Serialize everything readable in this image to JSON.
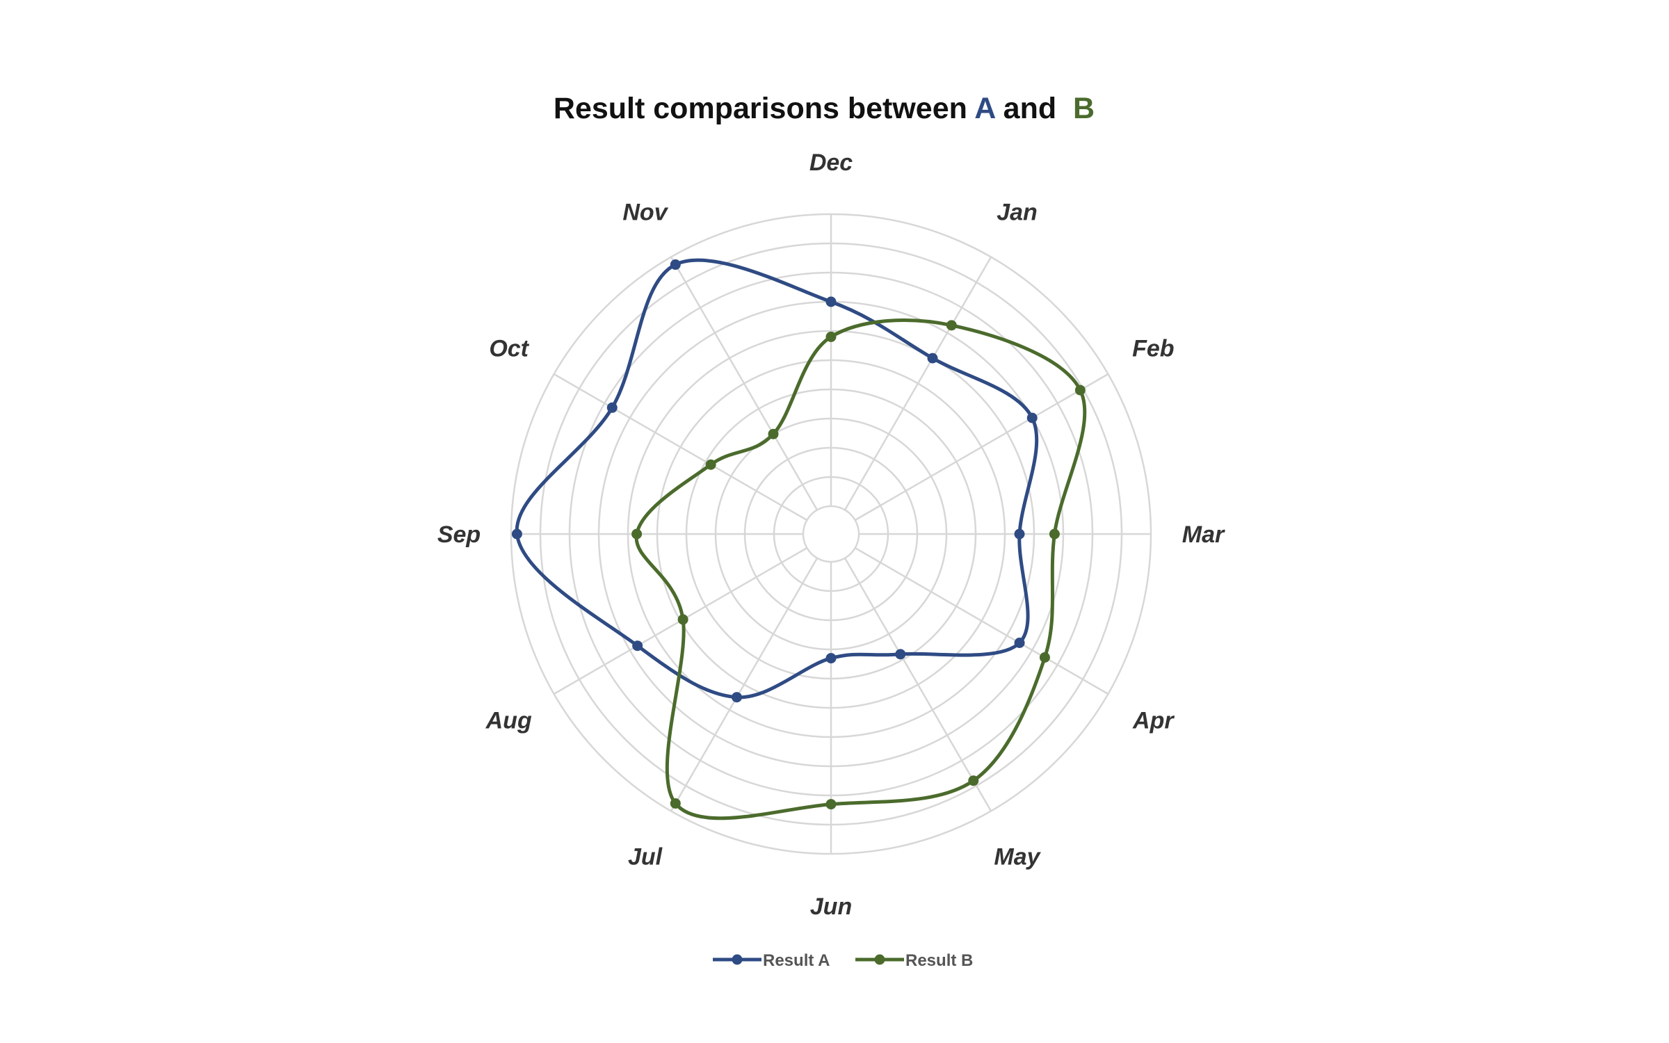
{
  "chart_data": {
    "type": "radar",
    "title_parts": [
      {
        "text": "Result comparisons between ",
        "color": "#111111"
      },
      {
        "text": "A",
        "color": "#2f4b84"
      },
      {
        "text": " and  ",
        "color": "#111111"
      },
      {
        "text": "B",
        "color": "#4b6b2c"
      }
    ],
    "categories": [
      "Dec",
      "Jan",
      "Feb",
      "Mar",
      "Apr",
      "May",
      "Jun",
      "Jul",
      "Aug",
      "Sep",
      "Oct",
      "Nov"
    ],
    "series": [
      {
        "name": "Result A",
        "color": "#2f4b84",
        "values": [
          7.0,
          6.0,
          7.0,
          5.5,
          6.5,
          3.8,
          3.3,
          5.5,
          6.7,
          9.8,
          7.7,
          9.7
        ]
      },
      {
        "name": "Result B",
        "color": "#4b6b2c",
        "values": [
          5.8,
          7.3,
          8.9,
          6.7,
          7.5,
          8.8,
          8.3,
          9.7,
          4.9,
          5.7,
          3.8,
          3.0
        ]
      }
    ],
    "r_range": [
      0,
      10
    ],
    "ring_count": 11,
    "grid": true,
    "legend_position": "bottom",
    "colors": {
      "grid": "#d7d7d7"
    }
  }
}
